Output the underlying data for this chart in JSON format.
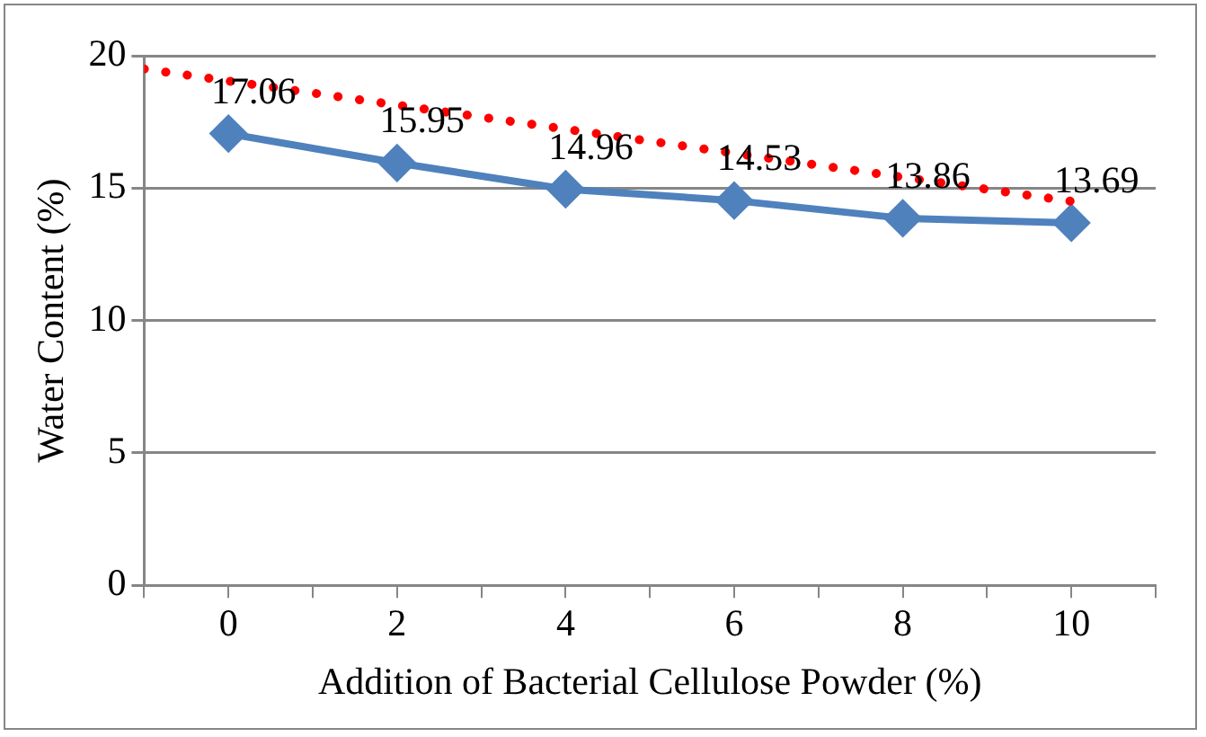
{
  "chart_data": {
    "type": "line",
    "xlabel": "Addition of Bacterial Cellulose Powder (%)",
    "ylabel": "Water Content (%)",
    "x": [
      0,
      2,
      4,
      6,
      8,
      10
    ],
    "xlim": [
      -1,
      11
    ],
    "xticks": [
      {
        "value": -1,
        "label": null
      },
      0,
      {
        "value": 1,
        "label": null
      },
      2,
      {
        "value": 3,
        "label": null
      },
      4,
      {
        "value": 5,
        "label": null
      },
      6,
      {
        "value": 7,
        "label": null
      },
      8,
      {
        "value": 9,
        "label": null
      },
      10,
      {
        "value": 11,
        "label": null
      }
    ],
    "ylim": [
      0,
      20
    ],
    "yticks": [
      0,
      5,
      10,
      15,
      20
    ],
    "grid": "y",
    "legend": false,
    "series": [
      {
        "color": "#4f81bd",
        "values": [
          17.06,
          15.95,
          14.96,
          14.53,
          13.86,
          13.69
        ],
        "marker": "diamond",
        "line_style": "solid",
        "value_labels": [
          "17.06",
          "15.95",
          "14.96",
          "14.53",
          "13.86",
          "13.69"
        ]
      },
      {
        "color": "#ff0000",
        "x": [
          -1,
          10
        ],
        "values": [
          19.5,
          14.5
        ],
        "marker": "none",
        "line_style": "dotted"
      }
    ]
  }
}
